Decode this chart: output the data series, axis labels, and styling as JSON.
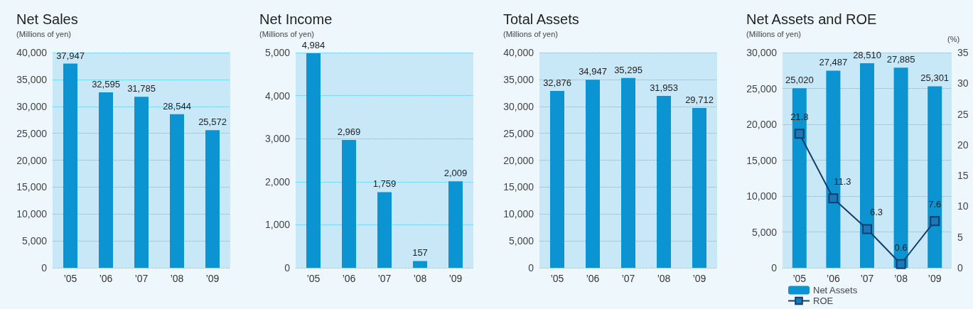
{
  "chart_data": [
    {
      "type": "bar",
      "title": "Net Sales",
      "ylabel": "(Millions of yen)",
      "categories": [
        "’05",
        "’06",
        "’07",
        "’08",
        "’09"
      ],
      "values": [
        37947,
        32595,
        31785,
        28544,
        25572
      ],
      "value_labels": [
        "37,947",
        "32,595",
        "31,785",
        "28,544",
        "25,572"
      ],
      "color": "#0c94d2",
      "ylim": [
        0,
        40000
      ],
      "yticks": [
        {
          "value": 0,
          "label": "0"
        },
        {
          "value": 5000,
          "label": "5,000"
        },
        {
          "value": 10000,
          "label": "10,000"
        },
        {
          "value": 15000,
          "label": "15,000"
        },
        {
          "value": 20000,
          "label": "20,000"
        },
        {
          "value": 25000,
          "label": "25,000"
        },
        {
          "value": 30000,
          "label": "30,000"
        },
        {
          "value": 35000,
          "label": "35,000"
        },
        {
          "value": 40000,
          "label": "40,000"
        }
      ],
      "grid": "y"
    },
    {
      "type": "bar",
      "title": "Net Income",
      "ylabel": "(Millions of yen)",
      "categories": [
        "’05",
        "’06",
        "’07",
        "’08",
        "’09"
      ],
      "values": [
        4984,
        2969,
        1759,
        157,
        2009
      ],
      "value_labels": [
        "4,984",
        "2,969",
        "1,759",
        "157",
        "2,009"
      ],
      "color": "#0c94d2",
      "ylim": [
        0,
        5000
      ],
      "yticks": [
        {
          "value": 0,
          "label": "0"
        },
        {
          "value": 1000,
          "label": "1,000"
        },
        {
          "value": 2000,
          "label": "2,000"
        },
        {
          "value": 3000,
          "label": "3,000"
        },
        {
          "value": 4000,
          "label": "4,000"
        },
        {
          "value": 5000,
          "label": "5,000"
        }
      ],
      "grid": "y"
    },
    {
      "type": "bar",
      "title": "Total Assets",
      "ylabel": "(Millions of yen)",
      "categories": [
        "’05",
        "’06",
        "’07",
        "’08",
        "’09"
      ],
      "values": [
        32876,
        34947,
        35295,
        31953,
        29712
      ],
      "value_labels": [
        "32,876",
        "34,947",
        "35,295",
        "31,953",
        "29,712"
      ],
      "color": "#0c94d2",
      "ylim": [
        0,
        40000
      ],
      "yticks": [
        {
          "value": 0,
          "label": "0"
        },
        {
          "value": 5000,
          "label": "5,000"
        },
        {
          "value": 10000,
          "label": "10,000"
        },
        {
          "value": 15000,
          "label": "15,000"
        },
        {
          "value": 20000,
          "label": "20,000"
        },
        {
          "value": 25000,
          "label": "25,000"
        },
        {
          "value": 30000,
          "label": "30,000"
        },
        {
          "value": 35000,
          "label": "35,000"
        },
        {
          "value": 40000,
          "label": "40,000"
        }
      ],
      "grid": "y"
    },
    {
      "type": "bar",
      "title": "Net Assets and ROE",
      "ylabel": "(Millions of yen)",
      "y2label": "(%)",
      "categories": [
        "’05",
        "’06",
        "’07",
        "’08",
        "’09"
      ],
      "series": [
        {
          "name": "Net Assets",
          "color": "#0c94d2",
          "values": [
            25020,
            27487,
            28510,
            27885,
            25301
          ],
          "value_labels": [
            "25,020",
            "27,487",
            "28,510",
            "27,885",
            "25,301"
          ]
        },
        {
          "name": "ROE",
          "type": "line",
          "axis": "y2",
          "color": "#153d6b",
          "marker": "square",
          "values": [
            21.8,
            11.3,
            6.3,
            0.6,
            7.6
          ],
          "value_labels": [
            "21.8",
            "11.3",
            "6.3",
            "0.6",
            "7.6"
          ]
        }
      ],
      "ylim": [
        0,
        30000
      ],
      "yticks": [
        {
          "value": 0,
          "label": "0"
        },
        {
          "value": 5000,
          "label": "5,000"
        },
        {
          "value": 10000,
          "label": "10,000"
        },
        {
          "value": 15000,
          "label": "15,000"
        },
        {
          "value": 20000,
          "label": "20,000"
        },
        {
          "value": 25000,
          "label": "25,000"
        },
        {
          "value": 30000,
          "label": "30,000"
        }
      ],
      "y2lim": [
        0,
        35
      ],
      "y2ticks": [
        0,
        5,
        10,
        15,
        20,
        25,
        30,
        35
      ],
      "grid": "y",
      "legend": "bottom left"
    }
  ]
}
